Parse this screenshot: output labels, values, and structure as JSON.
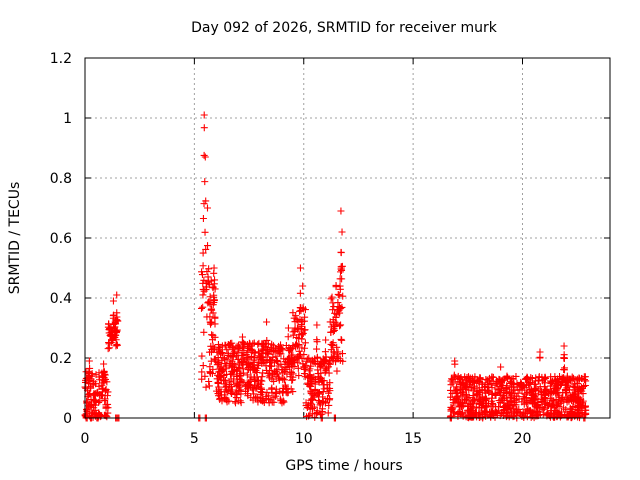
{
  "chart_data": {
    "type": "scatter",
    "title": "Day 092 of 2026, SRMTID for receiver murk",
    "xlabel": "GPS time / hours",
    "ylabel": "SRMTID / TECUs",
    "xlim": [
      0,
      24
    ],
    "ylim": [
      0,
      1.2
    ],
    "x_ticks": [
      0,
      5,
      10,
      15,
      20
    ],
    "x_tick_labels": [
      "0",
      "5",
      "10",
      "15",
      "20"
    ],
    "y_ticks": [
      0,
      0.2,
      0.4,
      0.6,
      0.8,
      1.0,
      1.2
    ],
    "y_tick_labels": [
      "0",
      "0.2",
      "0.4",
      "0.6",
      "0.8",
      "1",
      "1.2"
    ],
    "grid": true,
    "marker": "+",
    "series": [
      {
        "name": "SRMTID",
        "color": "#ff0000",
        "segments": [
          {
            "t_start": 0.0,
            "t_end": 1.05,
            "base": 0.06,
            "spread": 0.1,
            "peaks": [
              [
                0.2,
                0.19
              ],
              [
                0.85,
                0.18
              ]
            ]
          },
          {
            "t_start": 1.05,
            "t_end": 1.5,
            "base": 0.28,
            "spread": 0.05,
            "peaks": [
              [
                1.3,
                0.39
              ],
              [
                1.45,
                0.41
              ]
            ]
          },
          {
            "t_start": 5.3,
            "t_end": 6.0,
            "base": 0.3,
            "spread": 0.2,
            "peaks": [
              [
                5.45,
                1.01
              ],
              [
                5.5,
                0.87
              ],
              [
                5.6,
                0.7
              ],
              [
                5.9,
                0.5
              ]
            ]
          },
          {
            "t_start": 6.0,
            "t_end": 9.5,
            "base": 0.15,
            "spread": 0.1,
            "peaks": [
              [
                7.2,
                0.27
              ],
              [
                8.3,
                0.32
              ],
              [
                9.3,
                0.3
              ]
            ]
          },
          {
            "t_start": 9.5,
            "t_end": 10.1,
            "base": 0.25,
            "spread": 0.12,
            "peaks": [
              [
                9.85,
                0.5
              ],
              [
                9.95,
                0.44
              ]
            ]
          },
          {
            "t_start": 10.1,
            "t_end": 11.2,
            "base": 0.1,
            "spread": 0.1,
            "peaks": [
              [
                10.6,
                0.31
              ],
              [
                11.0,
                0.26
              ]
            ]
          },
          {
            "t_start": 11.2,
            "t_end": 11.8,
            "base": 0.3,
            "spread": 0.15,
            "peaks": [
              [
                11.7,
                0.69
              ],
              [
                11.75,
                0.62
              ]
            ]
          },
          {
            "t_start": 16.7,
            "t_end": 22.9,
            "base": 0.06,
            "spread": 0.08,
            "peaks": [
              [
                16.9,
                0.19
              ],
              [
                19.0,
                0.17
              ],
              [
                20.8,
                0.22
              ],
              [
                21.9,
                0.24
              ]
            ]
          }
        ],
        "zero_points": [
          0.05,
          0.25,
          0.55,
          1.4,
          1.5,
          5.2,
          5.5,
          10.8,
          11.4,
          16.7,
          22.8
        ]
      }
    ]
  },
  "colors": {
    "marker": "#ff0000",
    "grid": "#a0a0a0",
    "axes": "#000000",
    "background": "#ffffff"
  }
}
